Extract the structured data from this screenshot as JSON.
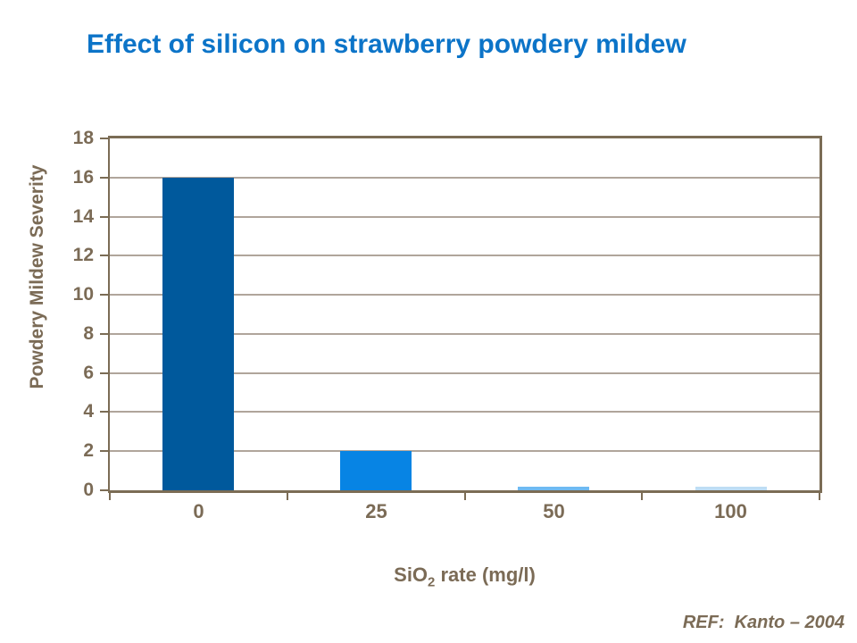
{
  "title": {
    "text": "Effect of silicon on strawberry powdery mildew",
    "color": "#0C74C8"
  },
  "chart_data": {
    "type": "bar",
    "categories": [
      "0",
      "25",
      "50",
      "100"
    ],
    "values": [
      16,
      2,
      0.2,
      0.2
    ],
    "bar_colors": [
      "#00599C",
      "#0784E4",
      "#6FBAF2",
      "#BEDDF4"
    ],
    "title": "Effect of silicon on strawberry powdery mildew",
    "xlabel": {
      "prefix": "SiO",
      "sub": "2",
      "suffix": " rate (mg/l)"
    },
    "ylabel": "Powdery Mildew Severity",
    "ylim": [
      0,
      18
    ],
    "yticks": [
      0,
      2,
      4,
      6,
      8,
      10,
      12,
      14,
      16,
      18
    ],
    "grid": true,
    "legend": false
  },
  "footer": {
    "ref": "REF:  Kanto – 2004"
  },
  "colors": {
    "axis_text": "#7B6B56",
    "frame": "#7B6C55",
    "gridline": "#B0A59B"
  }
}
